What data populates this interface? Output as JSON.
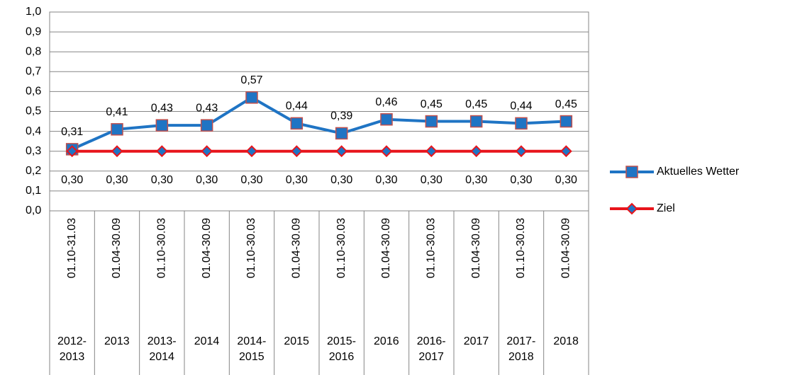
{
  "chart_data": {
    "type": "line",
    "categories": [
      "01.10-31.03",
      "01.04-30.09",
      "01.10-30.03",
      "01.04-30.09",
      "01.10-30.03",
      "01.04-30.09",
      "01.10-30.03",
      "01.04-30.09",
      "01.10-30.03",
      "01.04-30.09",
      "01.10-30.03",
      "01.04-30.09"
    ],
    "category_groups": [
      "2012-2013",
      "2013",
      "2013-2014",
      "2014",
      "2014-2015",
      "2015",
      "2015-2016",
      "2016",
      "2016-2017",
      "2017",
      "2017-2018",
      "2018"
    ],
    "series": [
      {
        "name": "Aktuelles Wetter",
        "color": "#1f74c4",
        "marker": "square",
        "values": [
          0.31,
          0.41,
          0.43,
          0.43,
          0.57,
          0.44,
          0.39,
          0.46,
          0.45,
          0.45,
          0.44,
          0.45
        ],
        "value_labels": [
          "0,31",
          "0,41",
          "0,43",
          "0,43",
          "0,57",
          "0,44",
          "0,39",
          "0,46",
          "0,45",
          "0,45",
          "0,44",
          "0,45"
        ]
      },
      {
        "name": "Ziel",
        "color": "#e8141b",
        "marker": "diamond",
        "values": [
          0.3,
          0.3,
          0.3,
          0.3,
          0.3,
          0.3,
          0.3,
          0.3,
          0.3,
          0.3,
          0.3,
          0.3
        ],
        "value_labels": [
          "0,30",
          "0,30",
          "0,30",
          "0,30",
          "0,30",
          "0,30",
          "0,30",
          "0,30",
          "0,30",
          "0,30",
          "0,30",
          "0,30"
        ]
      }
    ],
    "ylim": [
      0,
      1
    ],
    "yticks": [
      {
        "value": 0,
        "label": "0,0"
      },
      {
        "value": 0.1,
        "label": "0,1"
      },
      {
        "value": 0.2,
        "label": "0,2"
      },
      {
        "value": 0.3,
        "label": "0,3"
      },
      {
        "value": 0.4,
        "label": "0,4"
      },
      {
        "value": 0.5,
        "label": "0,5"
      },
      {
        "value": 0.6,
        "label": "0,6"
      },
      {
        "value": 0.7,
        "label": "0,7"
      },
      {
        "value": 0.8,
        "label": "0,8"
      },
      {
        "value": 0.9,
        "label": "0,9"
      },
      {
        "value": 1,
        "label": "1,0"
      }
    ],
    "grid": true,
    "legend": "right"
  }
}
